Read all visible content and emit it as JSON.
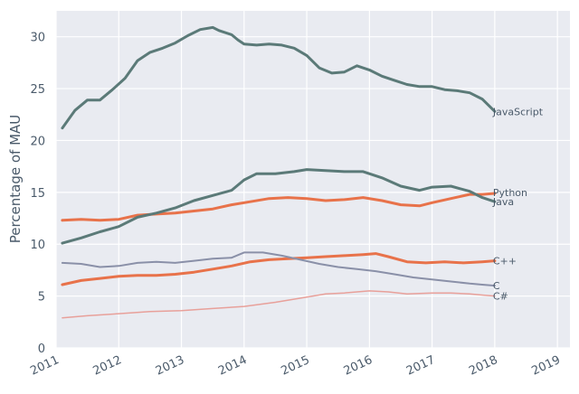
{
  "chart_data": {
    "type": "line",
    "xlabel": "",
    "ylabel": "Percentage of MAU",
    "xlim": [
      2011.0,
      2019.2
    ],
    "ylim": [
      0,
      32.5
    ],
    "xticks": [
      2011,
      2012,
      2013,
      2014,
      2015,
      2016,
      2017,
      2018,
      2019
    ],
    "xtick_labels": [
      "2011",
      "2012",
      "2013",
      "2014",
      "2015",
      "2016",
      "2017",
      "2018",
      "2019"
    ],
    "yticks": [
      0,
      5,
      10,
      15,
      20,
      25,
      30
    ],
    "ytick_labels": [
      "0",
      "5",
      "10",
      "15",
      "20",
      "25",
      "30"
    ],
    "grid": true,
    "legend": "inline labels at line ends",
    "colors": {
      "background": "#e9ebf1",
      "grid": "#ffffff",
      "text": "#4a5a6a"
    },
    "series": [
      {
        "name": "JavaScript",
        "color": "#5b7a78",
        "width": 3,
        "x": [
          2011.1,
          2011.3,
          2011.5,
          2011.7,
          2011.9,
          2012.1,
          2012.3,
          2012.5,
          2012.7,
          2012.9,
          2013.1,
          2013.3,
          2013.5,
          2013.6,
          2013.8,
          2013.9,
          2014.0,
          2014.2,
          2014.4,
          2014.6,
          2014.8,
          2015.0,
          2015.2,
          2015.4,
          2015.6,
          2015.8,
          2016.0,
          2016.2,
          2016.4,
          2016.6,
          2016.8,
          2017.0,
          2017.2,
          2017.4,
          2017.6,
          2017.8,
          2018.0
        ],
        "y": [
          21.2,
          22.9,
          23.9,
          23.9,
          24.9,
          26.0,
          27.7,
          28.5,
          28.9,
          29.4,
          30.1,
          30.7,
          30.9,
          30.6,
          30.2,
          29.7,
          29.3,
          29.2,
          29.3,
          29.2,
          28.9,
          28.2,
          27.0,
          26.5,
          26.6,
          27.2,
          26.8,
          26.2,
          25.8,
          25.4,
          25.2,
          25.2,
          24.9,
          24.8,
          24.6,
          24.0,
          22.8
        ]
      },
      {
        "name": "Python",
        "color": "#e8724a",
        "width": 3,
        "x": [
          2011.1,
          2011.4,
          2011.7,
          2012.0,
          2012.3,
          2012.6,
          2012.9,
          2013.2,
          2013.5,
          2013.8,
          2014.1,
          2014.4,
          2014.7,
          2015.0,
          2015.3,
          2015.6,
          2015.9,
          2016.2,
          2016.5,
          2016.8,
          2017.0,
          2017.3,
          2017.6,
          2017.8,
          2018.0
        ],
        "y": [
          12.3,
          12.4,
          12.3,
          12.4,
          12.8,
          12.9,
          13.0,
          13.2,
          13.4,
          13.8,
          14.1,
          14.4,
          14.5,
          14.4,
          14.2,
          14.3,
          14.5,
          14.2,
          13.8,
          13.7,
          14.0,
          14.4,
          14.8,
          14.8,
          14.9
        ]
      },
      {
        "name": "Java",
        "color": "#5b7a78",
        "width": 3,
        "x": [
          2011.1,
          2011.4,
          2011.7,
          2012.0,
          2012.3,
          2012.6,
          2012.9,
          2013.2,
          2013.5,
          2013.8,
          2014.0,
          2014.2,
          2014.5,
          2014.8,
          2015.0,
          2015.3,
          2015.6,
          2015.9,
          2016.2,
          2016.5,
          2016.8,
          2017.0,
          2017.3,
          2017.6,
          2017.8,
          2018.0
        ],
        "y": [
          10.1,
          10.6,
          11.2,
          11.7,
          12.6,
          13.0,
          13.5,
          14.2,
          14.7,
          15.2,
          16.2,
          16.8,
          16.8,
          17.0,
          17.2,
          17.1,
          17.0,
          17.0,
          16.4,
          15.6,
          15.2,
          15.5,
          15.6,
          15.1,
          14.5,
          14.1
        ]
      },
      {
        "name": "C++",
        "color": "#e8724a",
        "width": 3,
        "x": [
          2011.1,
          2011.4,
          2011.7,
          2012.0,
          2012.3,
          2012.6,
          2012.9,
          2013.2,
          2013.5,
          2013.8,
          2014.1,
          2014.4,
          2014.7,
          2015.0,
          2015.3,
          2015.6,
          2015.9,
          2016.1,
          2016.3,
          2016.6,
          2016.9,
          2017.2,
          2017.5,
          2017.8,
          2018.0
        ],
        "y": [
          6.1,
          6.5,
          6.7,
          6.9,
          7.0,
          7.0,
          7.1,
          7.3,
          7.6,
          7.9,
          8.3,
          8.5,
          8.6,
          8.7,
          8.8,
          8.9,
          9.0,
          9.1,
          8.8,
          8.3,
          8.2,
          8.3,
          8.2,
          8.3,
          8.4
        ]
      },
      {
        "name": "C",
        "color": "#8a90a8",
        "width": 2,
        "x": [
          2011.1,
          2011.4,
          2011.7,
          2012.0,
          2012.3,
          2012.6,
          2012.9,
          2013.2,
          2013.5,
          2013.8,
          2014.0,
          2014.3,
          2014.6,
          2014.9,
          2015.2,
          2015.5,
          2015.8,
          2016.1,
          2016.4,
          2016.7,
          2017.0,
          2017.3,
          2017.6,
          2017.8,
          2018.0
        ],
        "y": [
          8.2,
          8.1,
          7.8,
          7.9,
          8.2,
          8.3,
          8.2,
          8.4,
          8.6,
          8.7,
          9.2,
          9.2,
          8.9,
          8.5,
          8.1,
          7.8,
          7.6,
          7.4,
          7.1,
          6.8,
          6.6,
          6.4,
          6.2,
          6.1,
          6.0
        ]
      },
      {
        "name": "C#",
        "color": "#e8a09a",
        "width": 1.5,
        "x": [
          2011.1,
          2011.5,
          2012.0,
          2012.5,
          2013.0,
          2013.5,
          2014.0,
          2014.5,
          2015.0,
          2015.3,
          2015.6,
          2016.0,
          2016.3,
          2016.6,
          2017.0,
          2017.3,
          2017.6,
          2017.8,
          2018.0
        ],
        "y": [
          2.9,
          3.1,
          3.3,
          3.5,
          3.6,
          3.8,
          4.0,
          4.4,
          4.9,
          5.2,
          5.3,
          5.5,
          5.4,
          5.2,
          5.3,
          5.3,
          5.2,
          5.1,
          5.0
        ]
      }
    ],
    "labels": [
      {
        "series": "JavaScript",
        "text": "JavaScript",
        "x": 2018.0,
        "y": 22.8
      },
      {
        "series": "Python",
        "text": "Python",
        "x": 2018.0,
        "y": 15.0
      },
      {
        "series": "Java",
        "text": "Java",
        "x": 2018.0,
        "y": 14.1
      },
      {
        "series": "C++",
        "text": "C++",
        "x": 2018.0,
        "y": 8.4
      },
      {
        "series": "C",
        "text": "C",
        "x": 2018.0,
        "y": 6.0
      },
      {
        "series": "C#",
        "text": "C#",
        "x": 2018.0,
        "y": 5.0
      }
    ]
  }
}
